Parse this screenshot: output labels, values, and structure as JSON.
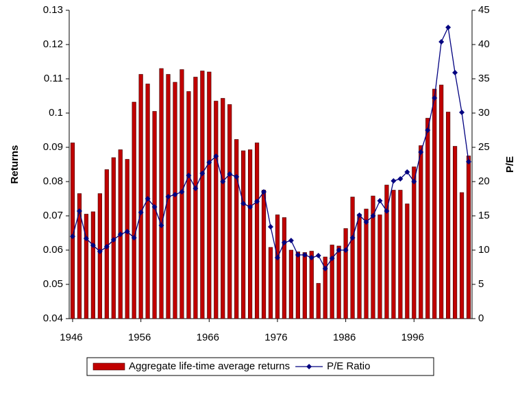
{
  "chart_data": {
    "type": "combo",
    "y_label": "Returns",
    "y2_label": "P/E",
    "x": [
      1946,
      1947,
      1948,
      1949,
      1950,
      1951,
      1952,
      1953,
      1954,
      1955,
      1956,
      1957,
      1958,
      1959,
      1960,
      1961,
      1962,
      1963,
      1964,
      1965,
      1966,
      1967,
      1968,
      1969,
      1970,
      1971,
      1972,
      1973,
      1974,
      1975,
      1976,
      1977,
      1978,
      1979,
      1980,
      1981,
      1982,
      1983,
      1984,
      1985,
      1986,
      1987,
      1988,
      1989,
      1990,
      1991,
      1992,
      1993,
      1994,
      1995,
      1996,
      1997,
      1998,
      1999,
      2000,
      2001,
      2002,
      2003,
      2004
    ],
    "xlim": [
      1945.5,
      2004.5
    ],
    "xticks": [
      1946,
      1956,
      1966,
      1976,
      1986,
      1996
    ],
    "ylim": [
      0.04,
      0.13
    ],
    "yticks": [
      0.04,
      0.05,
      0.06,
      0.07,
      0.08,
      0.09,
      0.1,
      0.11,
      0.12,
      0.13
    ],
    "y2lim": [
      0,
      45
    ],
    "y2ticks": [
      0,
      5,
      10,
      15,
      20,
      25,
      30,
      35,
      40,
      45
    ],
    "series": [
      {
        "name": "Aggregate life-time average returns",
        "type": "bar",
        "color": "#c00000",
        "values": [
          0.0913,
          0.0765,
          0.0705,
          0.0712,
          0.0765,
          0.0835,
          0.087,
          0.0893,
          0.0865,
          0.1032,
          0.1113,
          0.1085,
          0.1005,
          0.113,
          0.1113,
          0.109,
          0.1127,
          0.1063,
          0.1105,
          0.1123,
          0.112,
          0.1035,
          0.1043,
          0.1025,
          0.0923,
          0.089,
          0.0893,
          0.0913,
          0.0775,
          0.0608,
          0.0703,
          0.0695,
          0.06,
          0.0595,
          0.0593,
          0.0597,
          0.0503,
          0.058,
          0.0615,
          0.0612,
          0.0663,
          0.0755,
          0.0705,
          0.072,
          0.0758,
          0.0703,
          0.079,
          0.0775,
          0.0775,
          0.0735,
          0.0843,
          0.0905,
          0.0985,
          0.107,
          0.1082,
          0.1003,
          0.0903,
          0.0768,
          0.0875
        ]
      },
      {
        "name": "P/E Ratio",
        "type": "line",
        "axis": "y2",
        "color": "#000080",
        "values": [
          12,
          15.7,
          11.7,
          10.7,
          9.8,
          10.5,
          11.5,
          12.3,
          12.7,
          11.8,
          15.5,
          17.5,
          16.3,
          13.6,
          17.8,
          18.1,
          18.5,
          20.9,
          19,
          21.2,
          22.8,
          23.7,
          20,
          21.1,
          20.7,
          16.8,
          16.3,
          17.1,
          18.5,
          13.4,
          8.9,
          11.1,
          11.4,
          9.3,
          9.3,
          8.9,
          9.2,
          7.3,
          8.8,
          10,
          10,
          11.8,
          15.1,
          14.1,
          15,
          17.2,
          15.7,
          20.1,
          20.4,
          21.4,
          20,
          24.3,
          27.5,
          32.2,
          40.4,
          42.5,
          35.9,
          30.1,
          22.9
        ]
      }
    ]
  }
}
